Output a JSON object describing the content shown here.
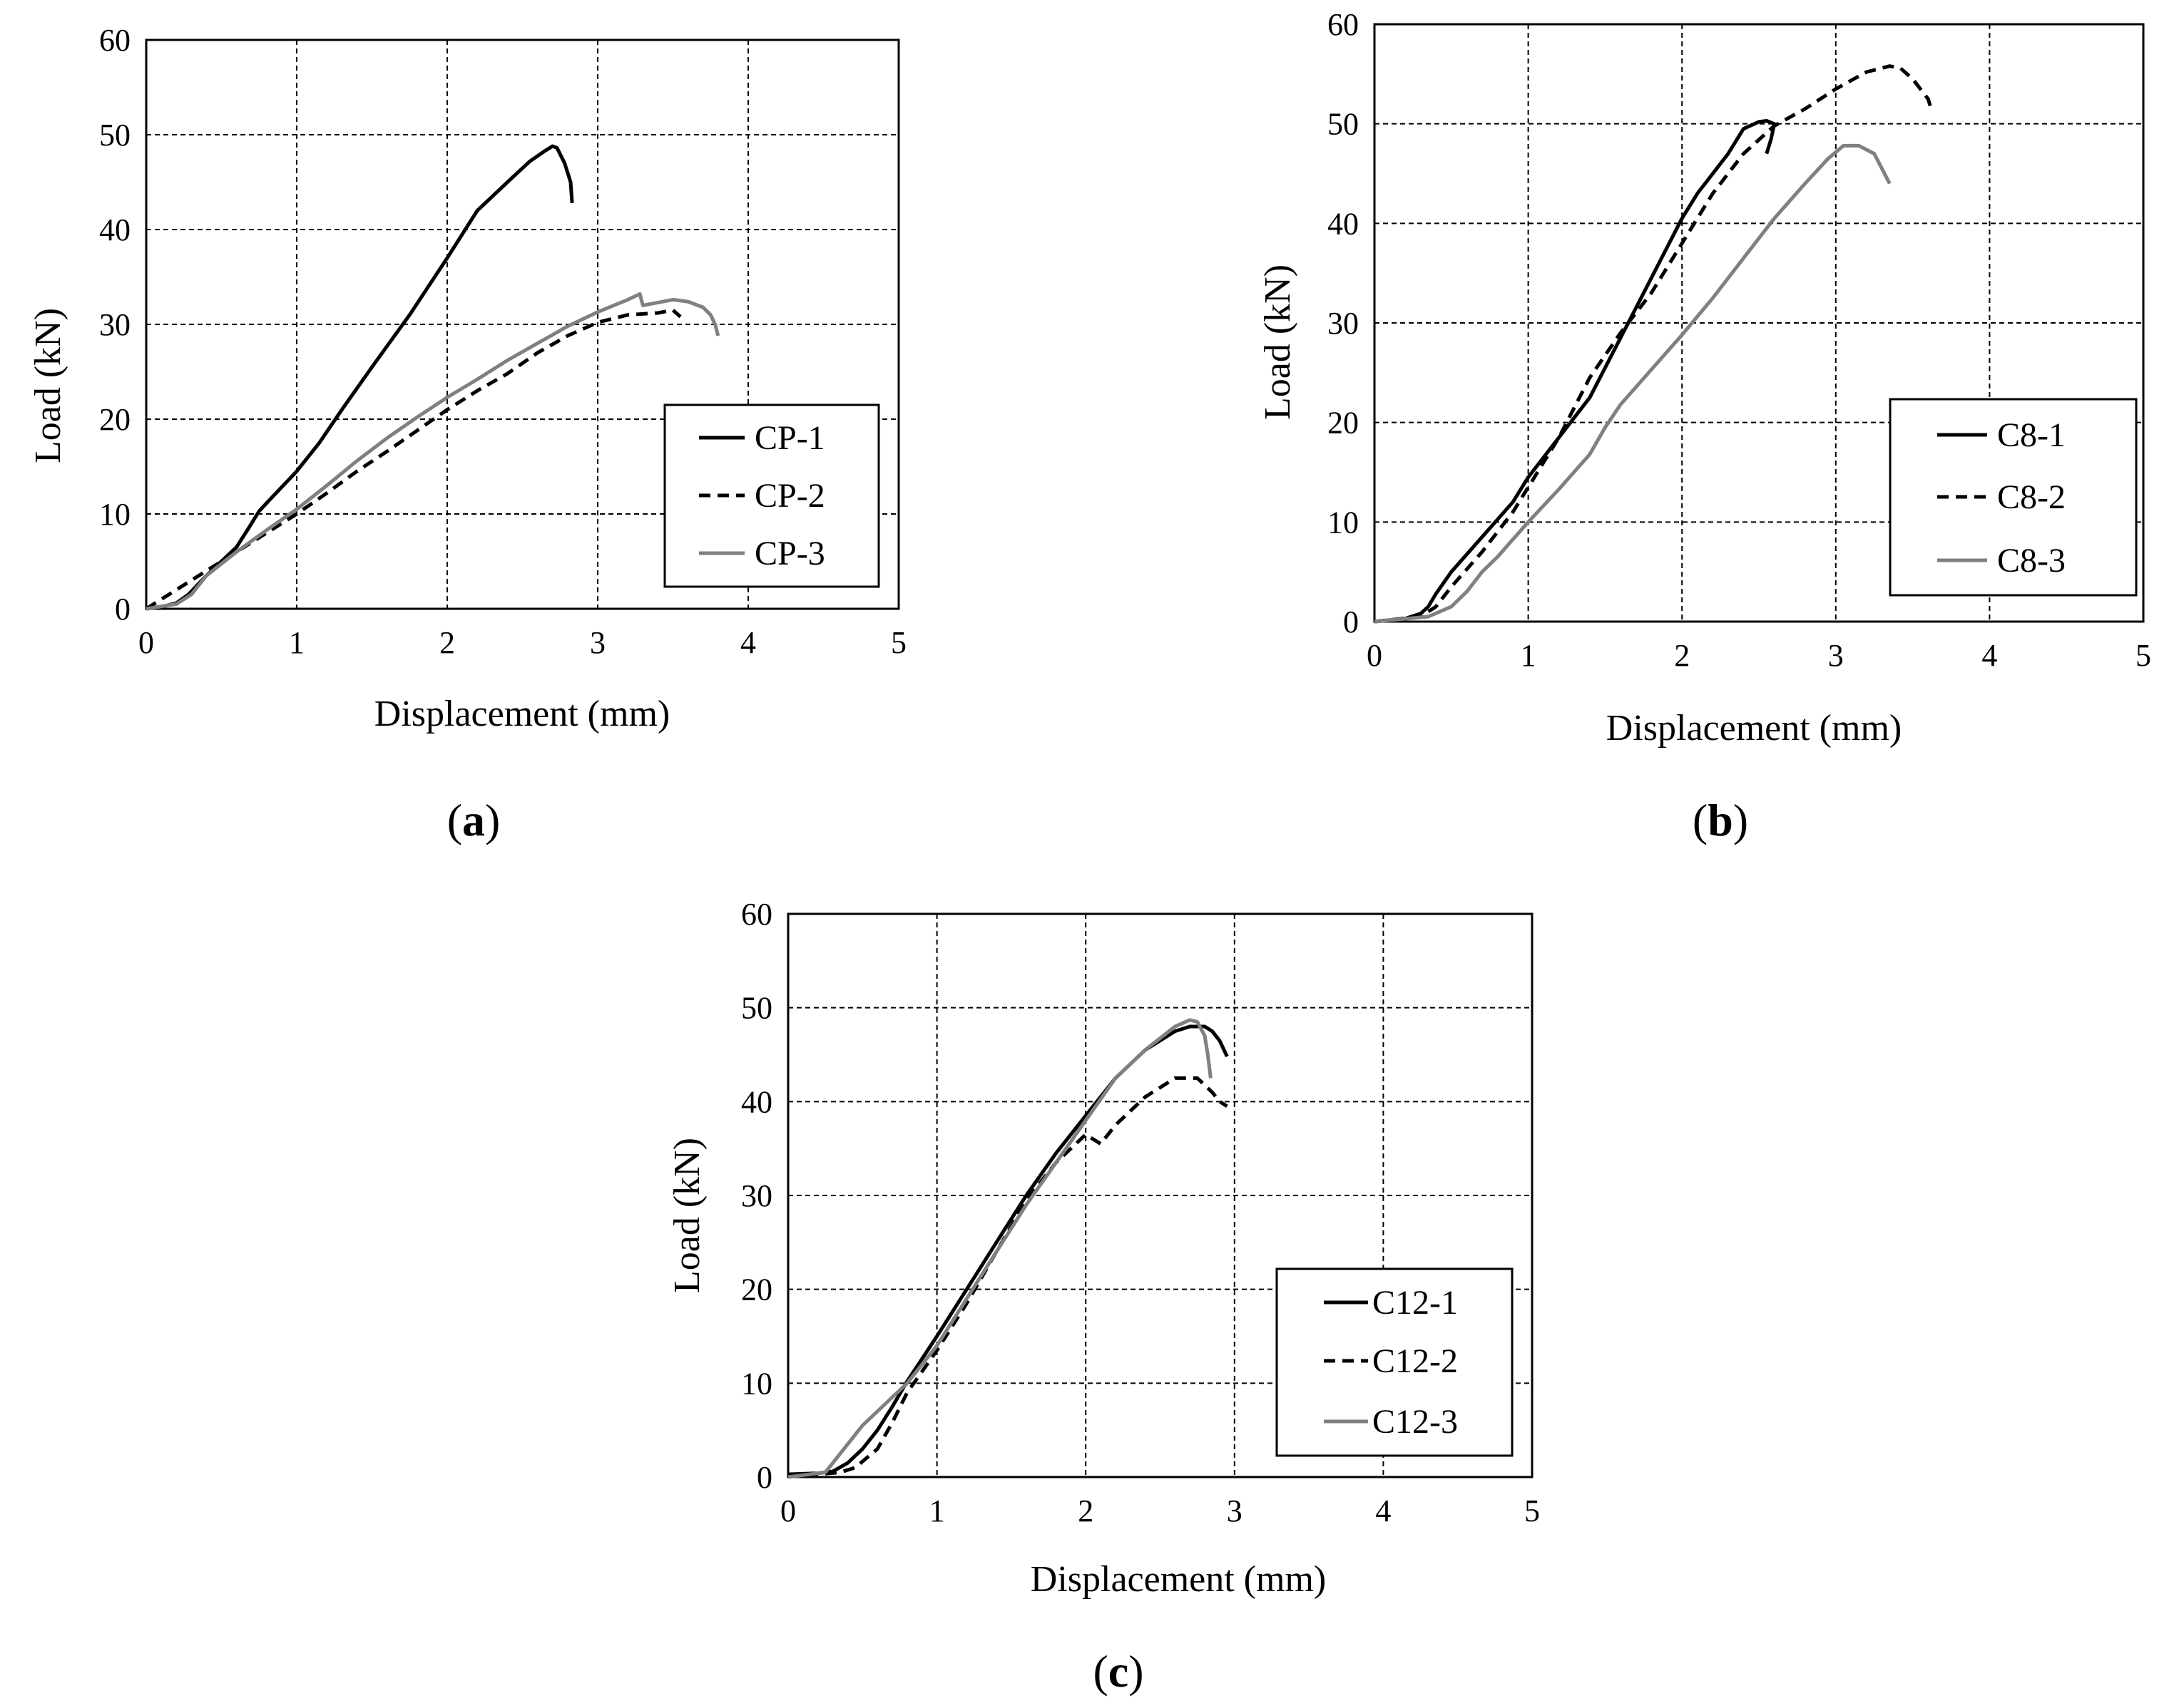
{
  "figure_labels": [
    "(a)",
    "(b)",
    "(c)"
  ],
  "styles": {
    "black_solid": {
      "color": "#000000",
      "dash": ""
    },
    "black_dashed": {
      "color": "#000000",
      "dash": "dash"
    },
    "gray_solid": {
      "color": "#808080",
      "dash": ""
    }
  },
  "chart_data": [
    {
      "type": "line",
      "panel": "a",
      "xlabel": "Displacement (mm)",
      "ylabel": "Load (kN)",
      "xlim": [
        0,
        5
      ],
      "ylim": [
        0,
        60
      ],
      "xticks": [
        0,
        1,
        2,
        3,
        4,
        5
      ],
      "yticks": [
        0,
        10,
        20,
        30,
        40,
        50,
        60
      ],
      "grid": true,
      "legend_position": "middle-right",
      "series": [
        {
          "name": "CP-1",
          "style": "black_solid",
          "x": [
            0,
            0.1,
            0.2,
            0.28,
            0.4,
            0.5,
            0.6,
            0.68,
            0.75,
            0.85,
            1.0,
            1.15,
            1.3,
            1.5,
            1.75,
            2.0,
            2.2,
            2.4,
            2.55,
            2.65,
            2.7,
            2.73,
            2.78,
            2.82,
            2.83
          ],
          "y": [
            0,
            0.2,
            0.6,
            1.5,
            3.5,
            5.0,
            6.5,
            8.5,
            10.3,
            12,
            14.5,
            17.5,
            21,
            25.5,
            31,
            37,
            42,
            45,
            47.2,
            48.3,
            48.8,
            48.6,
            47,
            45,
            42.8
          ]
        },
        {
          "name": "CP-2",
          "style": "black_dashed",
          "x": [
            0,
            0.2,
            0.4,
            0.6,
            0.8,
            1.0,
            1.2,
            1.4,
            1.6,
            1.8,
            2.0,
            2.2,
            2.4,
            2.6,
            2.8,
            3.0,
            3.2,
            3.4,
            3.5,
            3.55
          ],
          "y": [
            0,
            2.0,
            4.0,
            6.0,
            8.0,
            10.0,
            12.2,
            14.5,
            16.6,
            18.8,
            21,
            23,
            24.8,
            27,
            28.8,
            30.2,
            31.0,
            31.2,
            31.5,
            30.8
          ]
        },
        {
          "name": "CP-3",
          "style": "gray_solid",
          "x": [
            0,
            0.2,
            0.3,
            0.4,
            0.6,
            0.8,
            1.0,
            1.2,
            1.4,
            1.6,
            1.8,
            2.0,
            2.2,
            2.4,
            2.6,
            2.8,
            3.0,
            3.2,
            3.28,
            3.3,
            3.4,
            3.5,
            3.6,
            3.7,
            3.75,
            3.78,
            3.8
          ],
          "y": [
            0,
            0.5,
            1.5,
            3.5,
            6.0,
            8.3,
            10.5,
            13,
            15.6,
            18,
            20.2,
            22.3,
            24.2,
            26.2,
            28.0,
            29.8,
            31.3,
            32.6,
            33.2,
            32.0,
            32.3,
            32.6,
            32.4,
            31.8,
            31.0,
            30.0,
            28.8
          ]
        }
      ]
    },
    {
      "type": "line",
      "panel": "b",
      "xlabel": "Displacement (mm)",
      "ylabel": "Load (kN)",
      "xlim": [
        0,
        5
      ],
      "ylim": [
        0,
        60
      ],
      "xticks": [
        0,
        1,
        2,
        3,
        4,
        5
      ],
      "yticks": [
        0,
        10,
        20,
        30,
        40,
        50,
        60
      ],
      "grid": true,
      "legend_position": "middle-right",
      "series": [
        {
          "name": "C8-1",
          "style": "black_solid",
          "x": [
            0,
            0.2,
            0.3,
            0.35,
            0.4,
            0.5,
            0.7,
            0.9,
            1.0,
            1.2,
            1.4,
            1.6,
            1.8,
            2.0,
            2.1,
            2.3,
            2.4,
            2.5,
            2.55,
            2.6,
            2.58,
            2.55
          ],
          "y": [
            0,
            0.3,
            0.8,
            1.5,
            2.8,
            5.0,
            8.5,
            12,
            14.5,
            18.5,
            22.5,
            28.5,
            34.5,
            40.5,
            43,
            47,
            49.5,
            50.2,
            50.3,
            50.0,
            48.5,
            47.0
          ]
        },
        {
          "name": "C8-2",
          "style": "black_dashed",
          "x": [
            0,
            0.3,
            0.4,
            0.5,
            0.7,
            0.9,
            1.0,
            1.2,
            1.4,
            1.6,
            1.8,
            2.0,
            2.2,
            2.4,
            2.6,
            2.8,
            3.0,
            3.2,
            3.35,
            3.42,
            3.5,
            3.6,
            3.62
          ],
          "y": [
            0,
            0.5,
            1.5,
            3.5,
            7.0,
            11.0,
            13.5,
            18.5,
            24.5,
            29.0,
            33.0,
            38.0,
            43.0,
            47.0,
            49.8,
            51.5,
            53.5,
            55.2,
            55.8,
            55.6,
            54.5,
            52.5,
            51.5
          ]
        },
        {
          "name": "C8-3",
          "style": "gray_solid",
          "x": [
            0,
            0.35,
            0.5,
            0.6,
            0.7,
            0.8,
            1.0,
            1.2,
            1.4,
            1.5,
            1.6,
            1.8,
            2.0,
            2.2,
            2.4,
            2.6,
            2.8,
            2.95,
            3.05,
            3.15,
            3.25,
            3.3,
            3.35
          ],
          "y": [
            0,
            0.5,
            1.5,
            3.0,
            5.0,
            6.5,
            10.0,
            13.3,
            16.8,
            19.5,
            21.8,
            25.3,
            28.8,
            32.5,
            36.5,
            40.5,
            44.0,
            46.5,
            47.8,
            47.8,
            47.0,
            45.5,
            44.0
          ]
        }
      ]
    },
    {
      "type": "line",
      "panel": "c",
      "xlabel": "Displacement (mm)",
      "ylabel": "Load (kN)",
      "xlim": [
        0,
        5
      ],
      "ylim": [
        0,
        60
      ],
      "xticks": [
        0,
        1,
        2,
        3,
        4,
        5
      ],
      "yticks": [
        0,
        10,
        20,
        30,
        40,
        50,
        60
      ],
      "grid": true,
      "legend_position": "lower-right",
      "series": [
        {
          "name": "C12-1",
          "style": "black_solid",
          "x": [
            0,
            0.2,
            0.3,
            0.4,
            0.5,
            0.6,
            0.7,
            0.8,
            1.0,
            1.2,
            1.4,
            1.6,
            1.8,
            2.0,
            2.2,
            2.4,
            2.6,
            2.7,
            2.8,
            2.85,
            2.9,
            2.95
          ],
          "y": [
            0.3,
            0.4,
            0.6,
            1.5,
            3.0,
            5.0,
            7.5,
            10.2,
            15.0,
            20.0,
            25.0,
            30.0,
            34.5,
            38.5,
            42.5,
            45.5,
            47.5,
            48.0,
            48.0,
            47.5,
            46.5,
            44.8
          ]
        },
        {
          "name": "C12-2",
          "style": "black_dashed",
          "x": [
            0,
            0.2,
            0.35,
            0.45,
            0.6,
            0.7,
            0.8,
            1.0,
            1.2,
            1.4,
            1.6,
            1.8,
            2.0,
            2.05,
            2.1,
            2.2,
            2.4,
            2.6,
            2.75,
            2.85,
            2.9,
            2.95
          ],
          "y": [
            0.3,
            0.3,
            0.5,
            1.0,
            3.0,
            5.8,
            9.0,
            13.5,
            18.5,
            24.0,
            29.5,
            33.5,
            36.5,
            36.0,
            35.5,
            37.5,
            40.5,
            42.5,
            42.5,
            41.0,
            40.0,
            39.5
          ]
        },
        {
          "name": "C12-3",
          "style": "gray_solid",
          "x": [
            0,
            0.1,
            0.2,
            0.25,
            0.35,
            0.5,
            0.7,
            0.8,
            1.0,
            1.2,
            1.4,
            1.6,
            1.8,
            2.0,
            2.2,
            2.4,
            2.6,
            2.7,
            2.75,
            2.8,
            2.82,
            2.84
          ],
          "y": [
            0,
            0.2,
            0.4,
            0.5,
            2.5,
            5.5,
            8.5,
            10.0,
            14.0,
            19.0,
            24.0,
            29.0,
            33.5,
            38.0,
            42.5,
            45.5,
            48.0,
            48.7,
            48.5,
            47.0,
            45.0,
            42.5
          ]
        }
      ]
    }
  ]
}
